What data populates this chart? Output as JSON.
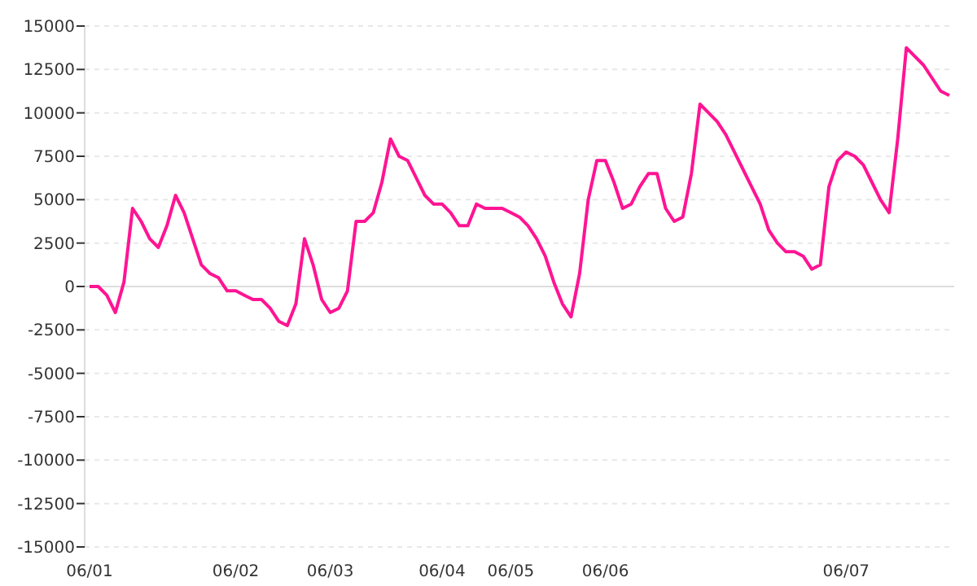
{
  "chart_data": {
    "type": "line",
    "ylim": [
      -15000,
      15000
    ],
    "categories": [
      "06/01",
      null,
      null,
      null,
      null,
      null,
      null,
      null,
      null,
      null,
      null,
      null,
      null,
      null,
      null,
      null,
      null,
      "06/02",
      null,
      null,
      null,
      null,
      null,
      null,
      null,
      null,
      null,
      null,
      "06/03",
      null,
      null,
      null,
      null,
      null,
      null,
      null,
      null,
      null,
      null,
      null,
      null,
      "06/04",
      null,
      null,
      null,
      null,
      null,
      null,
      null,
      "06/05",
      null,
      null,
      null,
      null,
      null,
      null,
      null,
      null,
      null,
      null,
      "06/06",
      null,
      null,
      null,
      null,
      null,
      null,
      null,
      null,
      null,
      null,
      null,
      null,
      null,
      null,
      null,
      null,
      null,
      null,
      null,
      null,
      null,
      null,
      null,
      null,
      null,
      null,
      null,
      "06/07",
      null,
      null,
      null,
      null,
      null,
      null,
      null,
      null,
      null,
      null,
      null,
      null
    ],
    "yticks": [
      -15000,
      -12500,
      -10000,
      -7500,
      -5000,
      -2500,
      0,
      2500,
      5000,
      7500,
      10000,
      12500,
      15000
    ],
    "grid": "y",
    "marker": "none",
    "line_style": "solid",
    "series": [
      {
        "color": "#ff1493",
        "values": [
          0,
          0,
          -500,
          -1500,
          250,
          4500,
          3750,
          2750,
          2250,
          3500,
          5250,
          4250,
          2750,
          1250,
          750,
          500,
          -250,
          -250,
          -500,
          -750,
          -750,
          -1250,
          -2000,
          -2250,
          -1000,
          2750,
          1250,
          -750,
          -1500,
          -1250,
          -250,
          3750,
          3750,
          4250,
          6000,
          8500,
          7500,
          7250,
          6250,
          5250,
          4750,
          4750,
          4250,
          3500,
          3500,
          4750,
          4500,
          4500,
          4500,
          4250,
          4000,
          3500,
          2750,
          1750,
          250,
          -1000,
          -1750,
          750,
          5000,
          7250,
          7250,
          6000,
          4500,
          4750,
          5750,
          6500,
          6500,
          4500,
          3750,
          4000,
          6500,
          10500,
          10000,
          9500,
          8750,
          7750,
          6750,
          5750,
          4750,
          3250,
          2500,
          2000,
          2000,
          1750,
          1000,
          1250,
          5750,
          7250,
          7750,
          7500,
          7000,
          6000,
          5000,
          4250,
          8500,
          13750,
          13250,
          12750,
          12000,
          11250,
          11000
        ]
      }
    ]
  }
}
